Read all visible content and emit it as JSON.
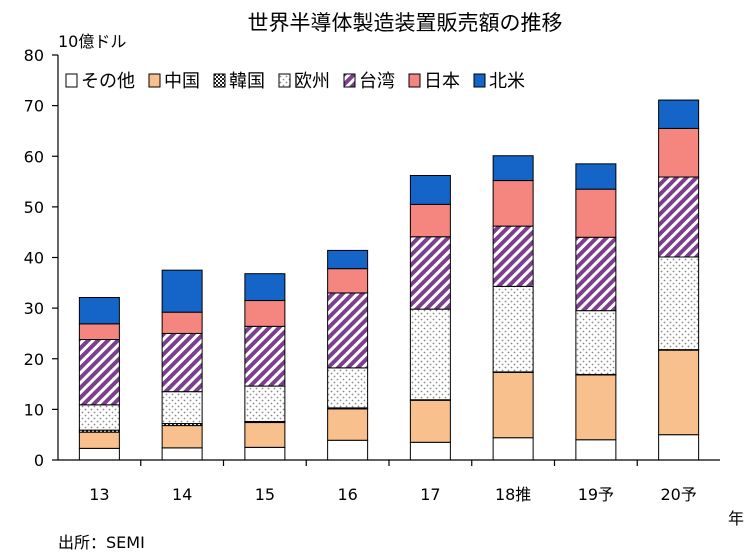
{
  "chart_data": {
    "type": "bar",
    "stacked": true,
    "title": "世界半導体製造装置販売額の推移",
    "ylabel": "10億ドル",
    "xlabel": "年",
    "source": "出所：SEMI",
    "ylim": [
      0,
      80
    ],
    "yticks": [
      0,
      10,
      20,
      30,
      40,
      50,
      60,
      70,
      80
    ],
    "grid": false,
    "legend_position": "top",
    "categories": [
      "13",
      "14",
      "15",
      "16",
      "17",
      "18推",
      "19予",
      "20予"
    ],
    "series": [
      {
        "name": "その他",
        "color": "#ffffff",
        "pattern": "solid",
        "values": [
          2.3,
          2.4,
          2.5,
          3.9,
          3.5,
          4.4,
          4.0,
          5.0
        ]
      },
      {
        "name": "中国",
        "color": "#f8c08c",
        "pattern": "solid",
        "values": [
          3.2,
          4.4,
          4.9,
          6.2,
          8.3,
          12.9,
          12.8,
          16.7
        ]
      },
      {
        "name": "韓国",
        "color": "#ffffff",
        "pattern": "checker",
        "values": [
          0.4,
          0.4,
          0.2,
          0.2,
          0.1,
          0.1,
          0.1,
          0.1
        ]
      },
      {
        "name": "欧州",
        "color": "#ffffff",
        "pattern": "dots",
        "values": [
          5.0,
          6.3,
          7.0,
          7.9,
          17.9,
          16.9,
          12.6,
          18.3
        ]
      },
      {
        "name": "台湾",
        "color": "#7b3f8e",
        "pattern": "stripes",
        "values": [
          12.9,
          11.5,
          11.8,
          14.8,
          14.3,
          11.9,
          14.5,
          15.8
        ]
      },
      {
        "name": "日本",
        "color": "#f5857f",
        "pattern": "solid",
        "values": [
          3.1,
          4.2,
          5.1,
          4.8,
          6.4,
          9.0,
          9.5,
          9.6
        ]
      },
      {
        "name": "北米",
        "color": "#1565c8",
        "pattern": "solid",
        "values": [
          5.2,
          8.3,
          5.3,
          3.6,
          5.7,
          4.9,
          5.0,
          5.6
        ]
      }
    ]
  }
}
